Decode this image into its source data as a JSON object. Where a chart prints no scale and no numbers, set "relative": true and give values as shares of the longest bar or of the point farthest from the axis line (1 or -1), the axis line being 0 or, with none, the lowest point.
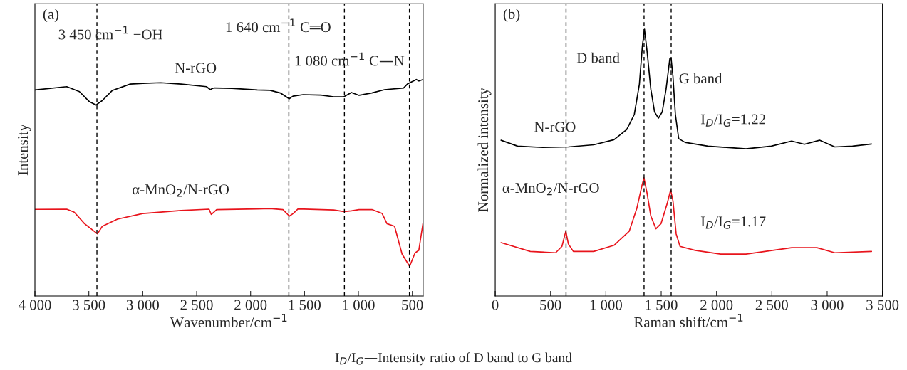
{
  "chart_data": [
    {
      "type": "line",
      "relative": true,
      "xlabel": "Wavenumber/cm$^{−1}$",
      "ylabel": "Intensity",
      "tick_labels": "x",
      "grid": false,
      "legend": false,
      "xlim": [
        4000,
        400
      ],
      "xticks": [
        {
          "value": 4000,
          "label": "4 000"
        },
        {
          "value": 3500,
          "label": "3 500"
        },
        {
          "value": 3000,
          "label": "3 000"
        },
        {
          "value": 2500,
          "label": "2 500"
        },
        {
          "value": 2000,
          "label": "2 000"
        },
        {
          "value": 1500,
          "label": "1 500"
        },
        {
          "value": 1000,
          "label": "1 000"
        },
        500
      ],
      "annotations": [
        "(a)",
        "3 450 cm$^{−1}$ −OH",
        "1 640 cm$^{−1}$ C═O",
        "1 080 cm$^{−1}$ C—N"
      ],
      "ref_lines": [
        {
          "axis": "x",
          "value": 3425,
          "line_style": "dashed",
          "color": "#000000"
        },
        {
          "axis": "x",
          "value": 1645,
          "line_style": "dashed",
          "color": "#000000"
        },
        {
          "axis": "x",
          "value": 1130,
          "line_style": "dashed",
          "color": "#000000"
        },
        {
          "axis": "x",
          "value": 527,
          "line_style": "dashed",
          "color": "#000000"
        }
      ],
      "series": [
        {
          "name": "N-rGO",
          "color": "#000000",
          "x": [
            4000,
            3705,
            3587,
            3493,
            3434,
            3375,
            3281,
            3116,
            2998,
            2833,
            2644,
            2409,
            2373,
            2357,
            2338,
            2173,
            1937,
            1819,
            1725,
            1642,
            1607,
            1513,
            1348,
            1230,
            1136,
            1065,
            994,
            876,
            758,
            581,
            546,
            463,
            439,
            400
          ],
          "values": [
            0.952,
            0.967,
            0.944,
            0.897,
            0.882,
            0.903,
            0.95,
            0.979,
            0.982,
            0.985,
            0.979,
            0.967,
            0.953,
            0.958,
            0.961,
            0.959,
            0.952,
            0.95,
            0.938,
            0.911,
            0.923,
            0.93,
            0.928,
            0.92,
            0.92,
            0.94,
            0.927,
            0.938,
            0.953,
            0.961,
            0.979,
            1.0,
            0.993,
            1.0
          ]
        },
        {
          "name": "α-MnO$_{2}$/N-rGO",
          "color": "#e8141c",
          "x": [
            4000,
            3705,
            3635,
            3540,
            3420,
            3375,
            3235,
            3000,
            2645,
            2385,
            2365,
            2340,
            2315,
            1935,
            1820,
            1700,
            1640,
            1605,
            1560,
            1230,
            1135,
            1065,
            995,
            875,
            780,
            735,
            665,
            595,
            525,
            475,
            440,
            400
          ],
          "values": [
            0.4,
            0.401,
            0.387,
            0.334,
            0.287,
            0.322,
            0.355,
            0.381,
            0.395,
            0.401,
            0.377,
            0.387,
            0.399,
            0.402,
            0.404,
            0.399,
            0.369,
            0.381,
            0.402,
            0.397,
            0.39,
            0.393,
            0.399,
            0.399,
            0.381,
            0.334,
            0.322,
            0.193,
            0.137,
            0.199,
            0.211,
            0.34
          ]
        }
      ]
    },
    {
      "type": "line",
      "relative": true,
      "xlabel": "Raman shift/cm$^{−1}$",
      "ylabel": "Normalized intensity",
      "tick_labels": "x",
      "grid": false,
      "legend": false,
      "xlim": [
        0,
        3500
      ],
      "xticks": [
        0,
        500,
        {
          "value": 1000,
          "label": "1 000"
        },
        {
          "value": 1500,
          "label": "1 500"
        },
        {
          "value": 2000,
          "label": "2 000"
        },
        {
          "value": 2500,
          "label": "2 500"
        },
        {
          "value": 3000,
          "label": "3 000"
        },
        {
          "value": 3500,
          "label": "3 500"
        }
      ],
      "annotations": [
        "(b)",
        "D band",
        "G band",
        "I$_{D}$/I$_{G}$=1.22",
        "I$_{D}$/I$_{G}$=1.17",
        "I$_{D}$/I$_{G}$—Intensity ratio of D band to G band"
      ],
      "ref_lines": [
        {
          "axis": "x",
          "value": 1345,
          "line_style": "dashed",
          "color": "#000000"
        },
        {
          "axis": "x",
          "value": 1590,
          "line_style": "dashed",
          "color": "#000000"
        },
        {
          "axis": "x",
          "value": 640,
          "line_style": "dashed",
          "color": "#000000"
        }
      ],
      "series": [
        {
          "name": "N-rGO",
          "color": "#000000",
          "x": [
            53,
            202,
            431,
            661,
            890,
            1073,
            1188,
            1257,
            1303,
            1330,
            1349,
            1372,
            1406,
            1440,
            1475,
            1509,
            1544,
            1578,
            1589,
            1606,
            1628,
            1658,
            1716,
            1922,
            2266,
            2495,
            2679,
            2794,
            2931,
            3069,
            3229,
            3401
          ],
          "values": [
            0.584,
            0.562,
            0.557,
            0.559,
            0.567,
            0.586,
            0.624,
            0.681,
            0.795,
            0.938,
            1.0,
            0.919,
            0.776,
            0.69,
            0.667,
            0.69,
            0.776,
            0.89,
            0.892,
            0.824,
            0.681,
            0.59,
            0.576,
            0.562,
            0.552,
            0.562,
            0.581,
            0.569,
            0.584,
            0.559,
            0.562,
            0.57
          ]
        },
        {
          "name": "α-MnO$_{2}$/N-rGO",
          "color": "#e8141c",
          "x": [
            53,
            317,
            546,
            603,
            638,
            661,
            706,
            890,
            1073,
            1211,
            1280,
            1326,
            1344,
            1372,
            1406,
            1452,
            1498,
            1555,
            1585,
            1606,
            1635,
            1670,
            1807,
            2037,
            2266,
            2679,
            2908,
            3069,
            3401
          ],
          "values": [
            0.2,
            0.167,
            0.162,
            0.186,
            0.243,
            0.195,
            0.167,
            0.167,
            0.19,
            0.243,
            0.329,
            0.414,
            0.443,
            0.386,
            0.3,
            0.252,
            0.271,
            0.348,
            0.397,
            0.357,
            0.233,
            0.186,
            0.171,
            0.157,
            0.157,
            0.181,
            0.181,
            0.162,
            0.167
          ]
        }
      ]
    }
  ]
}
